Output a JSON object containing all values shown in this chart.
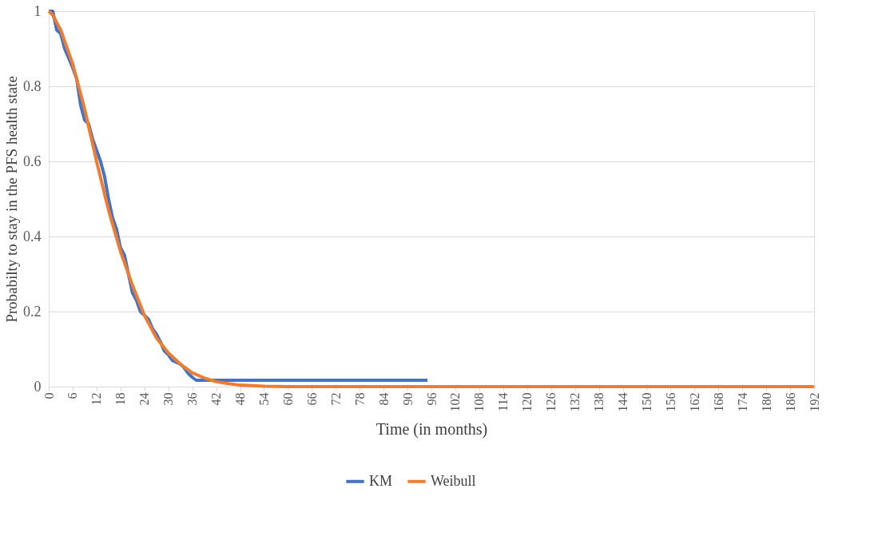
{
  "chart_data": {
    "type": "line",
    "xlabel": "Time (in months)",
    "ylabel": "Probabilty to stay in the PFS health state",
    "series": [
      {
        "name": "KM",
        "color": "#4472c4",
        "x": [
          0,
          1,
          2,
          3,
          4,
          6,
          7,
          8,
          9,
          10,
          11,
          12,
          13,
          14,
          15,
          16,
          17,
          18,
          19,
          20,
          21,
          22,
          23,
          24,
          25,
          26,
          27,
          28,
          29,
          30,
          31,
          32,
          33,
          34,
          35,
          36,
          37,
          40,
          95
        ],
        "values": [
          1,
          1,
          0.95,
          0.94,
          0.9,
          0.85,
          0.82,
          0.75,
          0.71,
          0.7,
          0.66,
          0.63,
          0.6,
          0.56,
          0.5,
          0.45,
          0.42,
          0.37,
          0.35,
          0.3,
          0.25,
          0.23,
          0.2,
          0.19,
          0.18,
          0.155,
          0.14,
          0.12,
          0.095,
          0.085,
          0.07,
          0.065,
          0.06,
          0.05,
          0.035,
          0.025,
          0.017,
          0.017,
          0.017
        ]
      },
      {
        "name": "Weibull",
        "color": "#ed7d31",
        "x": [
          0,
          1,
          3,
          6,
          9,
          12,
          15,
          18,
          21,
          24,
          27,
          30,
          33,
          36,
          39,
          42,
          45,
          48,
          54,
          60,
          192
        ],
        "values": [
          1,
          0.99,
          0.95,
          0.86,
          0.74,
          0.6,
          0.47,
          0.36,
          0.27,
          0.19,
          0.13,
          0.09,
          0.06,
          0.037,
          0.023,
          0.013,
          0.008,
          0.004,
          0.001,
          0,
          0
        ]
      }
    ],
    "xlim": [
      0,
      192
    ],
    "xticks": [
      0,
      6,
      12,
      18,
      24,
      30,
      36,
      42,
      48,
      54,
      60,
      66,
      72,
      78,
      84,
      90,
      96,
      102,
      108,
      114,
      120,
      126,
      132,
      138,
      144,
      150,
      156,
      162,
      168,
      174,
      180,
      186,
      192
    ],
    "ylim": [
      0,
      1
    ],
    "yticks": [
      0,
      0.2,
      0.4,
      0.6,
      0.8,
      1
    ],
    "grid": "y",
    "legend": "bottom",
    "marker": "none",
    "line_style": "solid"
  }
}
